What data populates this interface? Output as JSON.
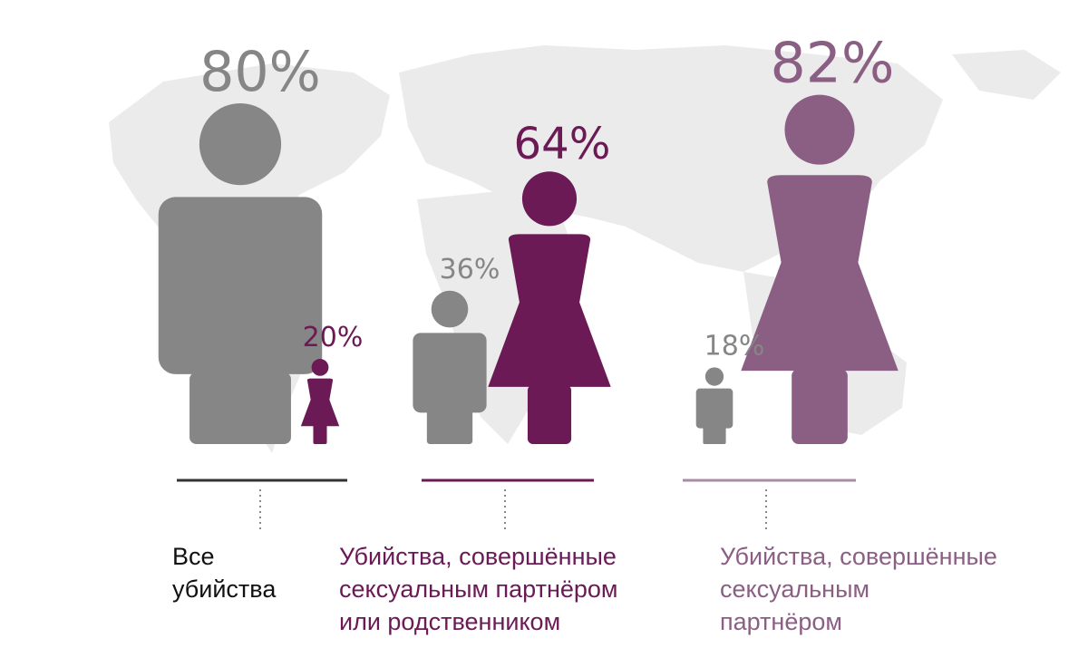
{
  "colors": {
    "background": "#ffffff",
    "world_map": "#ebebeb",
    "male": "#868686",
    "female_all": "#6b1a55",
    "female_partner": "#8b5e83",
    "line_all": "#333333",
    "line_family": "#6b1a55",
    "line_partner": "#a98ca4",
    "caption_all": "#111111",
    "caption_family": "#6b1a55",
    "caption_partner": "#8b5e83"
  },
  "chart_data": {
    "type": "pictogram",
    "groups": [
      {
        "name": "Все убийства",
        "caption_lines": [
          "Все",
          "убийства"
        ],
        "male": {
          "value": 80,
          "label": "80%"
        },
        "female": {
          "value": 20,
          "label": "20%"
        }
      },
      {
        "name": "Убийства, совершённые сексуальным партнёром или родственником",
        "caption_lines": [
          "Убийства, совершённые",
          "сексуальным партнёром",
          "или родственником"
        ],
        "male": {
          "value": 36,
          "label": "36%"
        },
        "female": {
          "value": 64,
          "label": "64%"
        }
      },
      {
        "name": "Убийства, совершённые сексуальным партнёром",
        "caption_lines": [
          "Убийства, совершённые",
          "сексуальным",
          "партнёром"
        ],
        "male": {
          "value": 18,
          "label": "18%"
        },
        "female": {
          "value": 82,
          "label": "82%"
        }
      }
    ]
  }
}
